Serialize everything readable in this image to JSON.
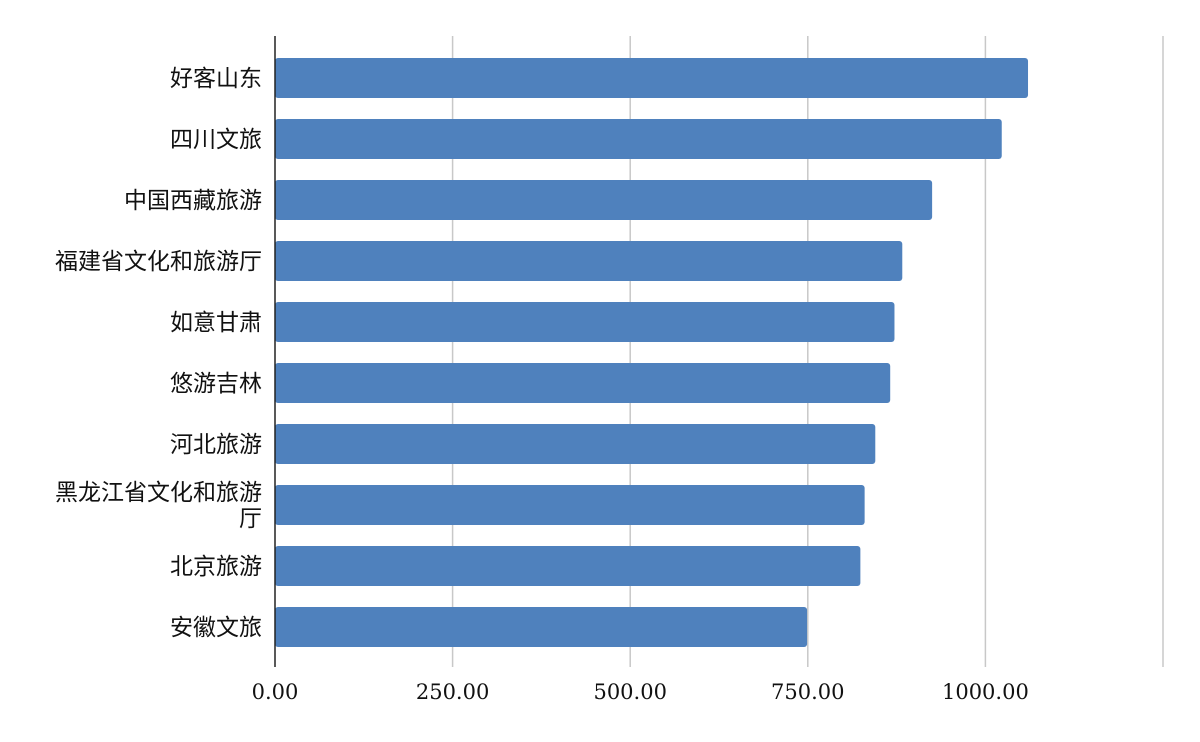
{
  "chart_data": {
    "type": "bar",
    "orientation": "horizontal",
    "categories": [
      "好客山东",
      "四川文旅",
      "中国西藏旅游",
      "福建省文化和旅游厅",
      "如意甘肃",
      "悠游吉林",
      "河北旅游",
      "黑龙江省文化和旅游厅",
      "北京旅游",
      "安徽文旅"
    ],
    "values": [
      1060,
      1023,
      925,
      883,
      872,
      866,
      845,
      830,
      824,
      749
    ],
    "xlim": [
      0,
      1250
    ],
    "xticks": [
      0,
      250,
      500,
      750,
      1000
    ],
    "xtick_labels": [
      "0.00",
      "250.00",
      "500.00",
      "750.00",
      "1000.00"
    ],
    "grid": "vertical",
    "bar_color": "#4f81bd",
    "title": "",
    "xlabel": "",
    "ylabel": ""
  }
}
